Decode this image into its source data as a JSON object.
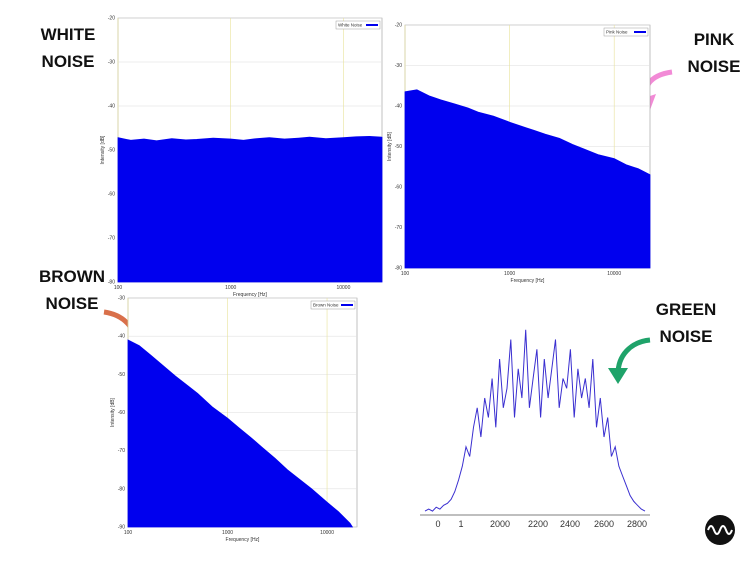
{
  "chart_data": [
    {
      "type": "area",
      "annotation": [
        "WHITE",
        "NOISE"
      ],
      "legend": "White Noise",
      "xlabel": "Frequency [Hz]",
      "ylabel": "Intensity [dB]",
      "color": "#0000ee",
      "log_x": true,
      "x": [
        100,
        130,
        170,
        220,
        300,
        400,
        500,
        700,
        1000,
        1300,
        1700,
        2200,
        3000,
        4000,
        5000,
        7000,
        10000,
        13000,
        17000,
        22000
      ],
      "values": [
        -47.2,
        -47.8,
        -47.5,
        -47.9,
        -47.4,
        -47.7,
        -47.6,
        -47.3,
        -47.5,
        -47.8,
        -47.4,
        -47.2,
        -47.5,
        -47.3,
        -47.1,
        -47.4,
        -47.2,
        -47.0,
        -46.9,
        -47.1
      ],
      "xlim": [
        100,
        22000
      ],
      "xticks": [
        100,
        1000,
        10000
      ],
      "ylim": [
        -80,
        -20
      ],
      "yticks": [
        -20,
        -30,
        -40,
        -50,
        -60,
        -70,
        -80
      ],
      "grid": true
    },
    {
      "type": "area",
      "annotation": [
        "PINK",
        "NOISE"
      ],
      "legend": "Pink Noise",
      "xlabel": "Frequency [Hz]",
      "ylabel": "Intensity [dB]",
      "color": "#0000ee",
      "log_x": true,
      "x": [
        100,
        130,
        170,
        220,
        300,
        400,
        500,
        700,
        1000,
        1300,
        1700,
        2200,
        3000,
        4000,
        5000,
        7000,
        10000,
        13000,
        17000,
        22000
      ],
      "values": [
        -36.5,
        -36,
        -37.5,
        -38.5,
        -39.5,
        -40.5,
        -41.5,
        -42.5,
        -44,
        -45,
        -46,
        -47,
        -48,
        -49.5,
        -50.5,
        -52,
        -53,
        -54.5,
        -55.5,
        -57
      ],
      "xlim": [
        100,
        22000
      ],
      "xticks": [
        100,
        1000,
        10000
      ],
      "ylim": [
        -80,
        -20
      ],
      "yticks": [
        -20,
        -30,
        -40,
        -50,
        -60,
        -70,
        -80
      ],
      "grid": true
    },
    {
      "type": "area",
      "annotation": [
        "BROWN",
        "NOISE"
      ],
      "legend": "Brown Noise",
      "xlabel": "Frequency [Hz]",
      "ylabel": "Intensity [dB]",
      "color": "#0000ee",
      "log_x": true,
      "x": [
        100,
        130,
        170,
        220,
        300,
        400,
        500,
        700,
        1000,
        1300,
        1700,
        2200,
        3000,
        4000,
        5000,
        7000,
        10000,
        13000,
        17000,
        18000
      ],
      "values": [
        -41,
        -42.5,
        -45,
        -47.5,
        -50.5,
        -53,
        -55,
        -58.5,
        -61.5,
        -64,
        -66.5,
        -69,
        -72,
        -75,
        -77,
        -80,
        -83.5,
        -86,
        -89,
        -90
      ],
      "xlim": [
        100,
        20000
      ],
      "xticks": [
        100,
        1000,
        10000
      ],
      "ylim": [
        -90,
        -30
      ],
      "yticks": [
        -30,
        -40,
        -50,
        -60,
        -70,
        -80,
        -90
      ],
      "grid": true
    },
    {
      "type": "line",
      "annotation": [
        "GREEN",
        "NOISE"
      ],
      "color": "#3a2fd0",
      "values": [
        2,
        3,
        2,
        4,
        3,
        5,
        6,
        8,
        12,
        18,
        25,
        35,
        30,
        45,
        55,
        40,
        60,
        50,
        70,
        45,
        80,
        55,
        65,
        90,
        50,
        75,
        60,
        95,
        55,
        70,
        85,
        50,
        80,
        60,
        75,
        90,
        55,
        70,
        65,
        85,
        50,
        75,
        60,
        70,
        55,
        80,
        45,
        60,
        40,
        50,
        30,
        35,
        25,
        20,
        15,
        10,
        7,
        5,
        3,
        2
      ],
      "ylim": [
        0,
        100
      ],
      "xtick_labels": [
        "0",
        "1",
        "2000",
        "2200",
        "2400",
        "2600",
        "2800"
      ]
    }
  ]
}
